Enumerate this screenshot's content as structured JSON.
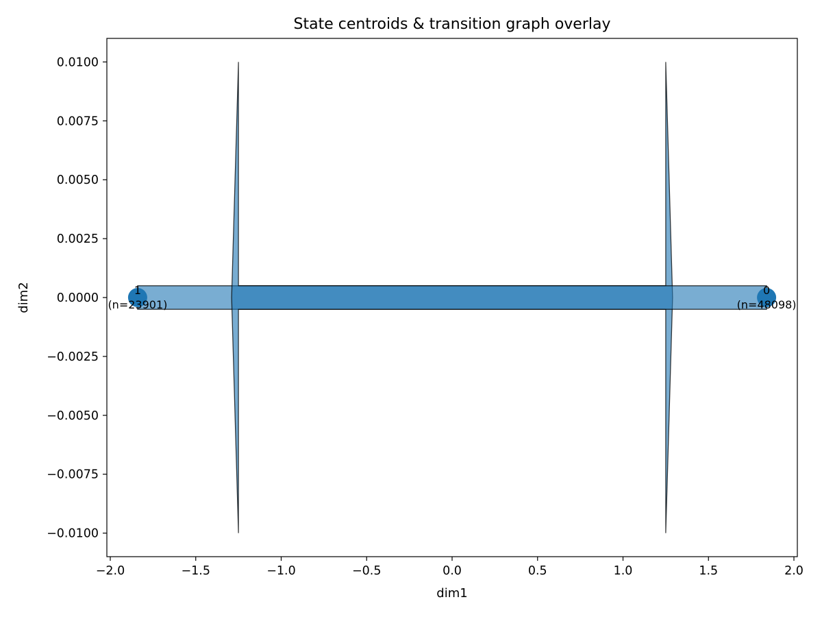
{
  "chart_data": {
    "type": "scatter",
    "title": "State centroids & transition graph overlay",
    "xlabel": "dim1",
    "ylabel": "dim2",
    "xlim": [
      -2.02,
      2.02
    ],
    "ylim": [
      -0.011,
      0.011
    ],
    "grid": false,
    "x_ticks": [
      -2.0,
      -1.5,
      -1.0,
      -0.5,
      0.0,
      0.5,
      1.0,
      1.5,
      2.0
    ],
    "x_tick_labels": [
      "−2.0",
      "−1.5",
      "−1.0",
      "−0.5",
      "0.0",
      "0.5",
      "1.0",
      "1.5",
      "2.0"
    ],
    "y_ticks": [
      0.01,
      0.0075,
      0.005,
      0.0025,
      0.0,
      -0.0025,
      -0.005,
      -0.0075,
      -0.01
    ],
    "y_tick_labels": [
      "0.0100",
      "0.0075",
      "0.0050",
      "0.0025",
      "0.0000",
      "−0.0025",
      "−0.0050",
      "−0.0075",
      "−0.0100"
    ],
    "nodes": [
      {
        "id": "1",
        "label": "1",
        "count_label": "(n=23901)",
        "x": -1.84,
        "y": 0.0
      },
      {
        "id": "0",
        "label": "0",
        "count_label": "(n=48098)",
        "x": 1.84,
        "y": 0.0
      }
    ],
    "edges": [
      {
        "from": "1",
        "to": "0",
        "x_start": -1.84,
        "x_end": 1.84,
        "half_width": 0.0005,
        "head_x": 1.25,
        "head_tip_x": 1.29,
        "head_half_height": 0.01,
        "opacity": 0.6
      },
      {
        "from": "0",
        "to": "1",
        "x_start": 1.84,
        "x_end": -1.84,
        "half_width": 0.0005,
        "head_x": -1.25,
        "head_tip_x": -1.29,
        "head_half_height": 0.01,
        "opacity": 0.6
      }
    ],
    "colors": {
      "node": "#1f77b4",
      "edge": "#1f77b4",
      "edge_stroke": "#000000"
    }
  }
}
